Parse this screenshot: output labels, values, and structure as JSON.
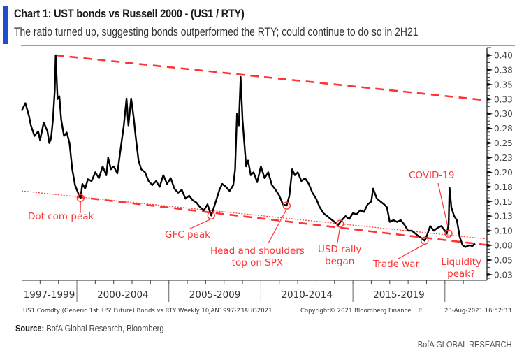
{
  "header": {
    "title": "Chart 1: UST bonds vs Russell 2000 - (US1 / RTY)",
    "subtitle": "The ratio turned up, suggesting bonds outperformed the RTY; could continue to do so in 2H21",
    "accent_color": "#1f4fcc"
  },
  "footer": {
    "source_label": "Source:",
    "source_text": " BofA Global Research, Bloomberg",
    "brand": "BofA GLOBAL RESEARCH"
  },
  "chart_data": {
    "type": "line",
    "title": "Chart 1: UST bonds vs Russell 2000 - (US1 / RTY)",
    "subtitle": "The ratio turned up, suggesting bonds outperformed the RTY; could continue to do so in 2H21",
    "series": [
      {
        "name": "US1 Comdty (Generic 1st 'US' Future) Bonds vs RTY",
        "color": "#000000",
        "x": [
          1997.0,
          1997.2,
          1997.4,
          1997.5,
          1997.7,
          1997.9,
          1998.0,
          1998.2,
          1998.4,
          1998.5,
          1998.6,
          1998.7,
          1998.8,
          1998.85,
          1998.95,
          1999.05,
          1999.15,
          1999.3,
          1999.45,
          1999.6,
          1999.75,
          1999.9,
          2000.0,
          2000.1,
          2000.2,
          2000.3,
          2000.45,
          2000.6,
          2000.8,
          2001.0,
          2001.2,
          2001.4,
          2001.6,
          2001.7,
          2001.85,
          2002.0,
          2002.2,
          2002.4,
          2002.55,
          2002.7,
          2002.8,
          2002.95,
          2003.1,
          2003.2,
          2003.35,
          2003.5,
          2003.7,
          2003.9,
          2004.1,
          2004.3,
          2004.5,
          2004.7,
          2004.9,
          2005.1,
          2005.3,
          2005.5,
          2005.7,
          2005.9,
          2006.1,
          2006.3,
          2006.5,
          2006.7,
          2006.9,
          2007.1,
          2007.3,
          2007.45,
          2007.6,
          2007.75,
          2007.9,
          2008.1,
          2008.3,
          2008.5,
          2008.6,
          2008.7,
          2008.8,
          2008.9,
          2009.0,
          2009.1,
          2009.2,
          2009.3,
          2009.45,
          2009.6,
          2009.8,
          2010.0,
          2010.2,
          2010.4,
          2010.6,
          2010.8,
          2011.0,
          2011.2,
          2011.4,
          2011.55,
          2011.7,
          2011.85,
          2012.0,
          2012.2,
          2012.4,
          2012.6,
          2012.8,
          2013.0,
          2013.2,
          2013.4,
          2013.6,
          2013.8,
          2014.0,
          2014.2,
          2014.4,
          2014.6,
          2014.8,
          2015.0,
          2015.2,
          2015.4,
          2015.6,
          2015.8,
          2016.0,
          2016.1,
          2016.3,
          2016.5,
          2016.7,
          2016.85,
          2017.0,
          2017.2,
          2017.4,
          2017.6,
          2017.8,
          2018.0,
          2018.2,
          2018.4,
          2018.6,
          2018.75,
          2018.9,
          2019.0,
          2019.2,
          2019.4,
          2019.6,
          2019.8,
          2020.0,
          2020.1,
          2020.2,
          2020.25,
          2020.35,
          2020.5,
          2020.65,
          2020.8,
          2020.95,
          2021.1,
          2021.3,
          2021.5,
          2021.64
        ],
        "values": [
          0.305,
          0.318,
          0.296,
          0.28,
          0.262,
          0.27,
          0.255,
          0.285,
          0.27,
          0.25,
          0.258,
          0.29,
          0.34,
          0.4,
          0.325,
          0.33,
          0.29,
          0.262,
          0.268,
          0.25,
          0.205,
          0.178,
          0.17,
          0.162,
          0.156,
          0.18,
          0.172,
          0.188,
          0.185,
          0.2,
          0.19,
          0.21,
          0.195,
          0.225,
          0.205,
          0.21,
          0.198,
          0.245,
          0.28,
          0.326,
          0.28,
          0.326,
          0.29,
          0.26,
          0.22,
          0.205,
          0.2,
          0.185,
          0.178,
          0.185,
          0.175,
          0.195,
          0.18,
          0.19,
          0.172,
          0.165,
          0.17,
          0.155,
          0.16,
          0.152,
          0.148,
          0.14,
          0.135,
          0.145,
          0.126,
          0.14,
          0.155,
          0.17,
          0.18,
          0.175,
          0.168,
          0.178,
          0.205,
          0.3,
          0.28,
          0.363,
          0.29,
          0.25,
          0.21,
          0.22,
          0.195,
          0.2,
          0.183,
          0.21,
          0.19,
          0.2,
          0.178,
          0.17,
          0.16,
          0.145,
          0.143,
          0.16,
          0.205,
          0.195,
          0.2,
          0.185,
          0.19,
          0.18,
          0.165,
          0.155,
          0.14,
          0.13,
          0.125,
          0.12,
          0.115,
          0.11,
          0.118,
          0.125,
          0.12,
          0.13,
          0.128,
          0.135,
          0.132,
          0.145,
          0.15,
          0.172,
          0.155,
          0.15,
          0.145,
          0.14,
          0.115,
          0.118,
          0.115,
          0.118,
          0.11,
          0.1,
          0.1,
          0.095,
          0.09,
          0.087,
          0.083,
          0.09,
          0.108,
          0.1,
          0.105,
          0.108,
          0.1,
          0.095,
          0.11,
          0.174,
          0.14,
          0.125,
          0.118,
          0.09,
          0.076,
          0.072,
          0.075,
          0.074,
          0.078
        ]
      }
    ],
    "trendlines": [
      {
        "name": "upper resistance",
        "style": "dashed",
        "color": "#ff3333",
        "x": [
          1998.85,
          2021.64
        ],
        "values": [
          0.4,
          0.325
        ]
      },
      {
        "name": "lower support (dashed)",
        "style": "dashed",
        "color": "#ff3333",
        "x": [
          2000.0,
          2021.64
        ],
        "values": [
          0.158,
          0.078
        ]
      },
      {
        "name": "lower support (dotted)",
        "style": "dotted",
        "color": "#ff3333",
        "x": [
          1997.0,
          2021.64
        ],
        "values": [
          0.168,
          0.088
        ]
      }
    ],
    "annotations": [
      {
        "text": "Dot com peak",
        "x": 2000.2,
        "value": 0.156
      },
      {
        "text": "GFC peak",
        "x": 2007.3,
        "value": 0.126
      },
      {
        "text": "Head and shoulders\ntop on SPX",
        "x": 2011.4,
        "value": 0.143
      },
      {
        "text": "USD rally\nbegan",
        "x": 2014.3,
        "value": 0.112
      },
      {
        "text": "Trade war",
        "x": 2018.9,
        "value": 0.083
      },
      {
        "text": "COVID-19",
        "x": 2020.2,
        "value": 0.095
      },
      {
        "text": "Liquidity\npeak?",
        "x": 2021.3,
        "value": 0.074
      }
    ],
    "xlabel": "",
    "ylabel": "",
    "x_tick_labels": [
      "1997-1999",
      "2000-2004",
      "2005-2009",
      "2010-2014",
      "2015-2019"
    ],
    "y_tick_labels": [
      "0.40",
      "0.38",
      "0.35",
      "0.33",
      "0.30",
      "0.28",
      "0.25",
      "0.23",
      "0.20",
      "0.18",
      "0.15",
      "0.13",
      "0.10",
      "0.08",
      "0.05",
      "0.03"
    ],
    "y_ticks": [
      0.4,
      0.375,
      0.35,
      0.325,
      0.3,
      0.275,
      0.25,
      0.225,
      0.2,
      0.175,
      0.15,
      0.125,
      0.1,
      0.075,
      0.05,
      0.025
    ],
    "xlim": [
      1997.0,
      2021.64
    ],
    "ylim": [
      0.015,
      0.41
    ],
    "y_axis_side": "right",
    "grid": false,
    "legend": "none",
    "footnote_left": "US1 Comdty (Generic 1st 'US' Future) Bonds vs RTY  Weekly 10JAN1997-23AUG2021",
    "footnote_mid": "Copyright© 2021 Bloomberg Finance L.P.",
    "footnote_right": "23-Aug-2021 16:52:33",
    "annotation_color": "#ff3333"
  }
}
